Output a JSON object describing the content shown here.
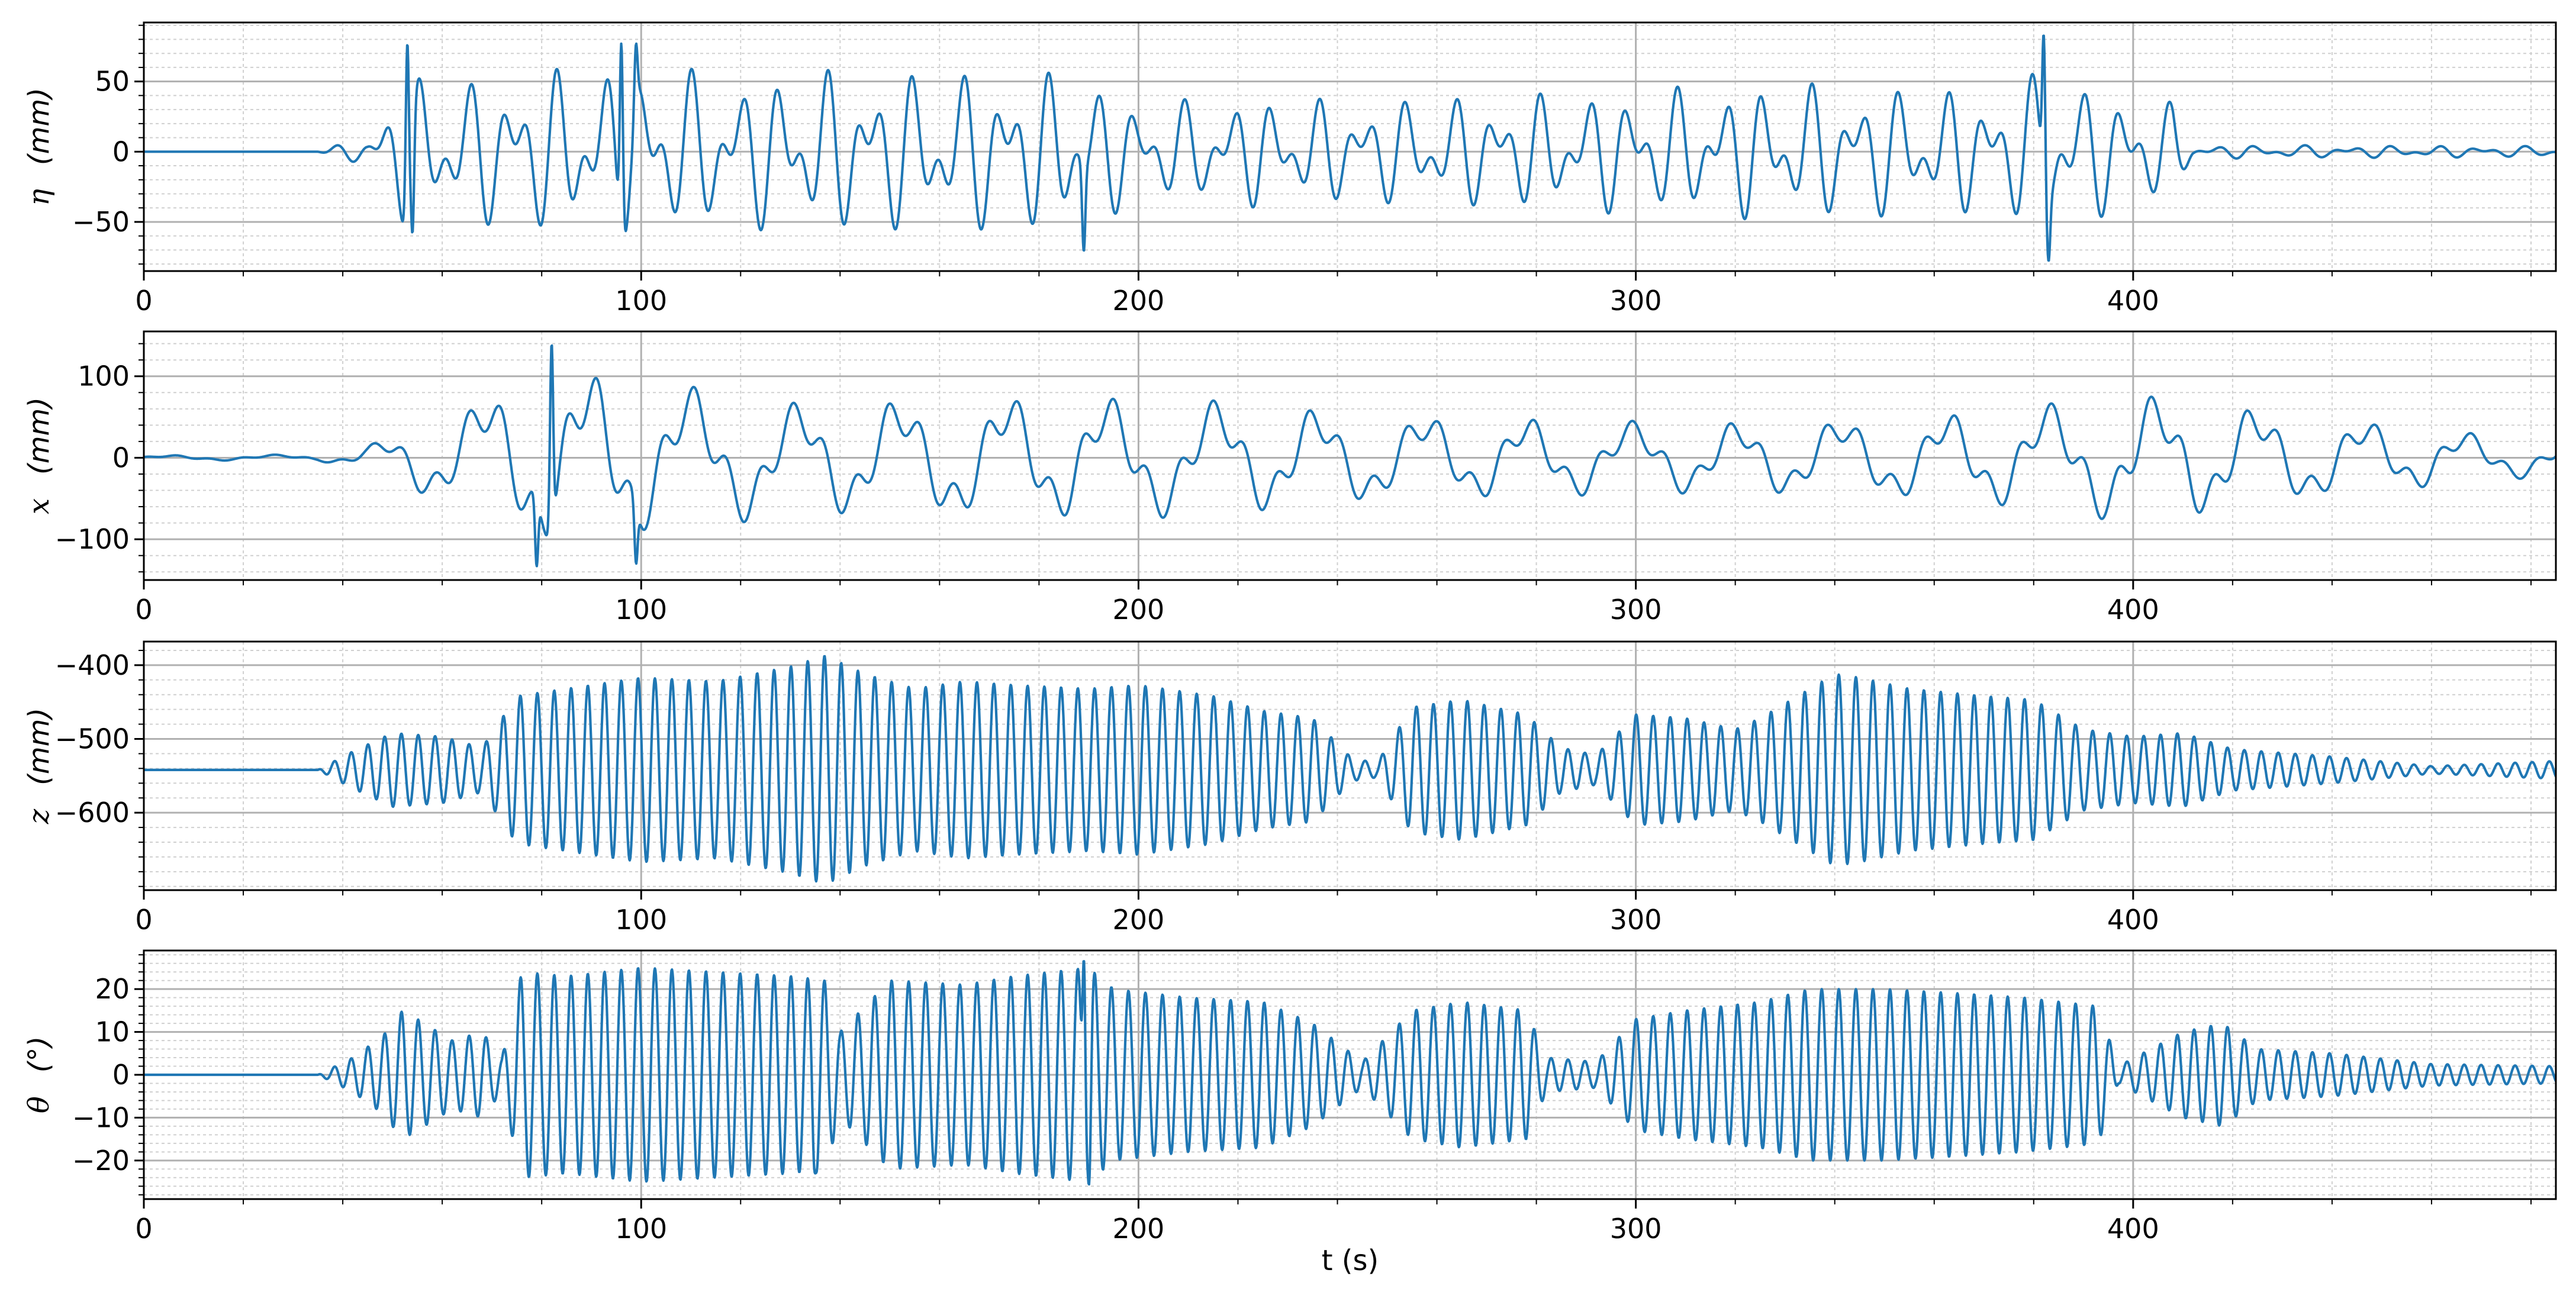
{
  "figure": {
    "xlabel": "t (s)",
    "line_color": "#1f77b4",
    "major_grid_color": "#b0b0b0",
    "minor_grid_color": "#d0d0d0"
  },
  "chart_data": [
    {
      "type": "line",
      "panel": "eta",
      "ylabel_symbol": "η",
      "ylabel_unit": "(mm)",
      "xlim": [
        0,
        485
      ],
      "ylim": [
        -85,
        92
      ],
      "xticks": [
        "0",
        "100",
        "200",
        "300",
        "400"
      ],
      "yticks": [
        "50",
        "0",
        "−50"
      ],
      "ytick_values": [
        50,
        0,
        -50
      ],
      "grid": "major and minor",
      "signal": {
        "points": [
          [
            0,
            0
          ],
          [
            35,
            0
          ],
          [
            45,
            12
          ],
          [
            53,
            60
          ],
          [
            60,
            50
          ],
          [
            75,
            58
          ],
          [
            95,
            65
          ],
          [
            120,
            55
          ],
          [
            140,
            60
          ],
          [
            160,
            58
          ],
          [
            175,
            60
          ],
          [
            190,
            55
          ],
          [
            200,
            35
          ],
          [
            220,
            40
          ],
          [
            245,
            38
          ],
          [
            260,
            40
          ],
          [
            280,
            42
          ],
          [
            300,
            45
          ],
          [
            320,
            48
          ],
          [
            335,
            50
          ],
          [
            350,
            48
          ],
          [
            370,
            45
          ],
          [
            383,
            60
          ],
          [
            395,
            45
          ],
          [
            408,
            35
          ],
          [
            412,
            5
          ],
          [
            485,
            4
          ]
        ],
        "periods": [
          9,
          5.5
        ],
        "mix": [
          0.55,
          0.45
        ],
        "peaks": [
          [
            53,
            78
          ],
          [
            54,
            -58
          ],
          [
            96,
            77
          ],
          [
            99,
            77
          ],
          [
            189,
            -71
          ],
          [
            382,
            85
          ],
          [
            383,
            -78
          ]
        ]
      },
      "series": [
        {
          "name": ""
        }
      ]
    },
    {
      "type": "line",
      "panel": "x",
      "ylabel_symbol": "x",
      "ylabel_unit": "(mm)",
      "xlim": [
        0,
        485
      ],
      "ylim": [
        -150,
        155
      ],
      "xticks": [
        "0",
        "100",
        "200",
        "300",
        "400"
      ],
      "yticks": [
        "100",
        "0",
        "−100"
      ],
      "ytick_values": [
        100,
        0,
        -100
      ],
      "grid": "major and minor",
      "signal": {
        "points": [
          [
            0,
            3
          ],
          [
            35,
            4
          ],
          [
            45,
            15
          ],
          [
            55,
            45
          ],
          [
            65,
            70
          ],
          [
            80,
            115
          ],
          [
            90,
            110
          ],
          [
            100,
            95
          ],
          [
            115,
            85
          ],
          [
            130,
            70
          ],
          [
            150,
            75
          ],
          [
            170,
            80
          ],
          [
            200,
            75
          ],
          [
            220,
            70
          ],
          [
            240,
            60
          ],
          [
            260,
            55
          ],
          [
            280,
            50
          ],
          [
            300,
            45
          ],
          [
            320,
            45
          ],
          [
            340,
            50
          ],
          [
            360,
            55
          ],
          [
            380,
            65
          ],
          [
            400,
            80
          ],
          [
            410,
            75
          ],
          [
            430,
            60
          ],
          [
            450,
            45
          ],
          [
            470,
            30
          ],
          [
            485,
            22
          ]
        ],
        "periods": [
          21,
          6.5
        ],
        "mix": [
          0.7,
          0.3
        ],
        "peaks": [
          [
            82,
            140
          ],
          [
            79,
            -133
          ],
          [
            99,
            -130
          ]
        ]
      },
      "series": [
        {
          "name": ""
        }
      ]
    },
    {
      "type": "line",
      "panel": "z",
      "ylabel_symbol": "z",
      "ylabel_unit": "(mm)",
      "xlim": [
        0,
        485
      ],
      "ylim": [
        -705,
        -368
      ],
      "offset": -542,
      "xticks": [
        "0",
        "100",
        "200",
        "300",
        "400"
      ],
      "yticks": [
        "−400",
        "−500",
        "−600"
      ],
      "ytick_values": [
        -400,
        -500,
        -600
      ],
      "grid": "major and minor",
      "signal": {
        "points": [
          [
            0,
            0
          ],
          [
            35,
            0
          ],
          [
            42,
            25
          ],
          [
            50,
            50
          ],
          [
            60,
            45
          ],
          [
            68,
            30
          ],
          [
            75,
            100
          ],
          [
            85,
            110
          ],
          [
            100,
            125
          ],
          [
            115,
            120
          ],
          [
            130,
            140
          ],
          [
            137,
            155
          ],
          [
            145,
            130
          ],
          [
            155,
            110
          ],
          [
            165,
            120
          ],
          [
            175,
            115
          ],
          [
            190,
            110
          ],
          [
            200,
            115
          ],
          [
            215,
            100
          ],
          [
            225,
            80
          ],
          [
            235,
            70
          ],
          [
            243,
            15
          ],
          [
            248,
            10
          ],
          [
            255,
            85
          ],
          [
            265,
            95
          ],
          [
            278,
            75
          ],
          [
            285,
            30
          ],
          [
            292,
            20
          ],
          [
            300,
            75
          ],
          [
            310,
            70
          ],
          [
            320,
            55
          ],
          [
            325,
            70
          ],
          [
            340,
            130
          ],
          [
            345,
            125
          ],
          [
            355,
            110
          ],
          [
            370,
            100
          ],
          [
            380,
            95
          ],
          [
            390,
            55
          ],
          [
            400,
            45
          ],
          [
            410,
            50
          ],
          [
            420,
            28
          ],
          [
            440,
            18
          ],
          [
            460,
            5
          ],
          [
            485,
            12
          ]
        ],
        "periods": [
          3.4
        ],
        "mix": [
          1
        ],
        "peaks": []
      },
      "series": [
        {
          "name": ""
        }
      ]
    },
    {
      "type": "line",
      "panel": "theta",
      "ylabel_symbol": "θ",
      "ylabel_unit": "(°)",
      "xlim": [
        0,
        485
      ],
      "ylim": [
        -29,
        29
      ],
      "xticks": [
        "0",
        "100",
        "200",
        "300",
        "400"
      ],
      "yticks": [
        "20",
        "10",
        "0",
        "−10",
        "−20"
      ],
      "ytick_values": [
        20,
        10,
        0,
        -10,
        -20
      ],
      "grid": "major and minor",
      "signal": {
        "points": [
          [
            0,
            0
          ],
          [
            35,
            0
          ],
          [
            42,
            4
          ],
          [
            48,
            9
          ],
          [
            52,
            15
          ],
          [
            55,
            13
          ],
          [
            62,
            8
          ],
          [
            68,
            10
          ],
          [
            72,
            4
          ],
          [
            76,
            24
          ],
          [
            85,
            23
          ],
          [
            100,
            25
          ],
          [
            115,
            24
          ],
          [
            130,
            23
          ],
          [
            137,
            22
          ],
          [
            140,
            10
          ],
          [
            150,
            22
          ],
          [
            165,
            21
          ],
          [
            175,
            23
          ],
          [
            190,
            25
          ],
          [
            195,
            20
          ],
          [
            210,
            18
          ],
          [
            225,
            17
          ],
          [
            235,
            12
          ],
          [
            245,
            3
          ],
          [
            255,
            15
          ],
          [
            265,
            17
          ],
          [
            278,
            15
          ],
          [
            282,
            4
          ],
          [
            292,
            3
          ],
          [
            300,
            13
          ],
          [
            310,
            15
          ],
          [
            325,
            17
          ],
          [
            335,
            20
          ],
          [
            350,
            20
          ],
          [
            365,
            19
          ],
          [
            378,
            18
          ],
          [
            393,
            16
          ],
          [
            397,
            2
          ],
          [
            410,
            10
          ],
          [
            418,
            12
          ],
          [
            425,
            6
          ],
          [
            440,
            5
          ],
          [
            460,
            2.5
          ],
          [
            485,
            2
          ]
        ],
        "periods": [
          3.4
        ],
        "mix": [
          1
        ],
        "peaks": [
          [
            190,
            -26
          ],
          [
            189,
            27
          ],
          [
            135,
            -23
          ]
        ]
      },
      "series": [
        {
          "name": ""
        }
      ]
    }
  ]
}
